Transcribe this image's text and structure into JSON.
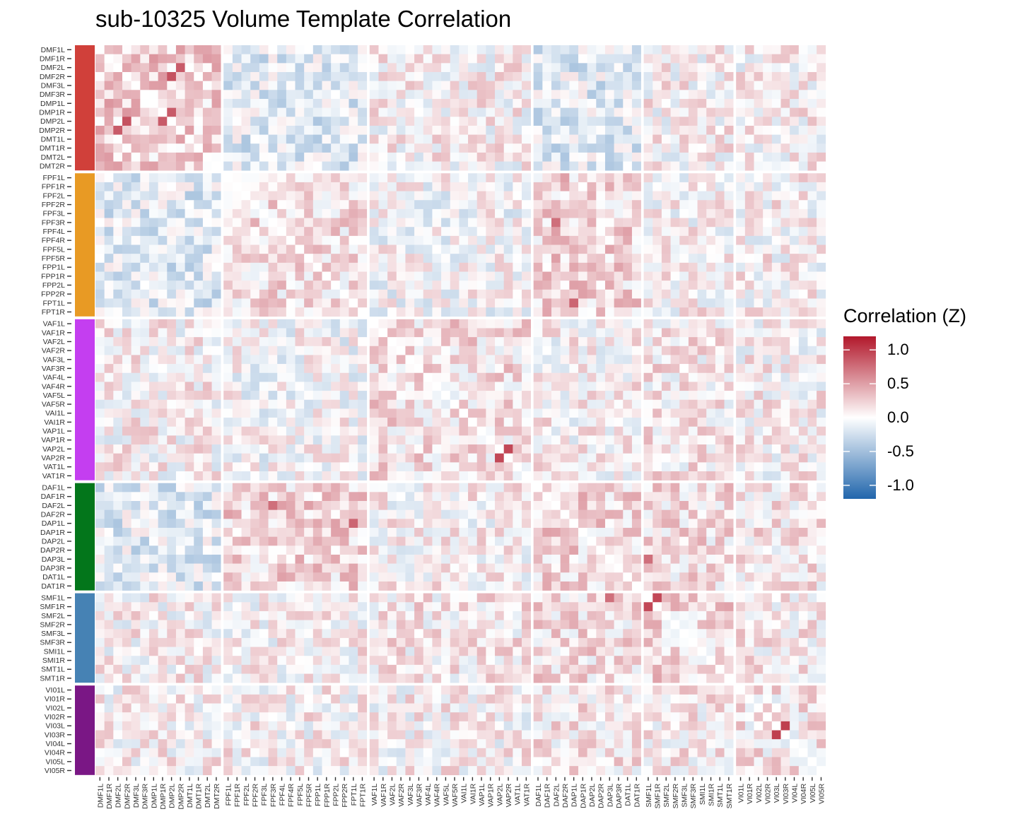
{
  "chart_data": {
    "type": "heatmap",
    "title": "sub-10325 Volume Template Correlation",
    "labels": [
      "DMF1L",
      "DMF1R",
      "DMF2L",
      "DMF2R",
      "DMF3L",
      "DMF3R",
      "DMP1L",
      "DMP1R",
      "DMP2L",
      "DMP2R",
      "DMT1L",
      "DMT1R",
      "DMT2L",
      "DMT2R",
      "FPF1L",
      "FPF1R",
      "FPF2L",
      "FPF2R",
      "FPF3L",
      "FPF3R",
      "FPF4L",
      "FPF4R",
      "FPF5L",
      "FPF5R",
      "FPP1L",
      "FPP1R",
      "FPP2L",
      "FPP2R",
      "FPT1L",
      "FPT1R",
      "VAF1L",
      "VAF1R",
      "VAF2L",
      "VAF2R",
      "VAF3L",
      "VAF3R",
      "VAF4L",
      "VAF4R",
      "VAF5L",
      "VAF5R",
      "VAI1L",
      "VAI1R",
      "VAP1L",
      "VAP1R",
      "VAP2L",
      "VAP2R",
      "VAT1L",
      "VAT1R",
      "DAF1L",
      "DAF1R",
      "DAF2L",
      "DAF2R",
      "DAP1L",
      "DAP1R",
      "DAP2L",
      "DAP2R",
      "DAP3L",
      "DAP3R",
      "DAT1L",
      "DAT1R",
      "SMF1L",
      "SMF1R",
      "SMF2L",
      "SMF2R",
      "SMF3L",
      "SMF3R",
      "SMI1L",
      "SMI1R",
      "SMT1L",
      "SMT1R",
      "VI01L",
      "VI01R",
      "VI02L",
      "VI02R",
      "VI03L",
      "VI03R",
      "VI04L",
      "VI04R",
      "VI05L",
      "VI05R"
    ],
    "groups": [
      {
        "name": "DM",
        "size": 14,
        "color": "#d0403a"
      },
      {
        "name": "FP",
        "size": 16,
        "color": "#e89a24"
      },
      {
        "name": "VA",
        "size": 18,
        "color": "#c43ef0"
      },
      {
        "name": "DA",
        "size": 12,
        "color": "#03761b"
      },
      {
        "name": "SM",
        "size": 10,
        "color": "#4682b4"
      },
      {
        "name": "VI",
        "size": 10,
        "color": "#7a1785"
      }
    ],
    "strong_pairs": [
      [
        "DMF2R",
        "DMP2L",
        0.9
      ],
      [
        "DMP1R",
        "DMP2L",
        0.85
      ],
      [
        "DMF2L",
        "DMP2R",
        0.85
      ],
      [
        "SMF1L",
        "SMF1R",
        0.95
      ],
      [
        "VI03L",
        "VI03R",
        1.0
      ],
      [
        "VAP2L",
        "VAP2R",
        0.95
      ],
      [
        "DAF2L",
        "FPF3R",
        0.75
      ],
      [
        "FPT1L",
        "DAP1L",
        0.8
      ],
      [
        "DAP3L",
        "SMF1L",
        0.75
      ]
    ],
    "legend": {
      "title": "Correlation (Z)",
      "ticks": [
        1.0,
        0.5,
        0.0,
        -0.5,
        -1.0
      ],
      "tick_labels": [
        "1.0",
        "0.5",
        "0.0",
        "-0.5",
        "-1.0"
      ],
      "colors": {
        "high": "#b2182b",
        "mid": "#ffffff",
        "low": "#2166ac"
      },
      "range": [
        -1.2,
        1.2
      ]
    }
  }
}
